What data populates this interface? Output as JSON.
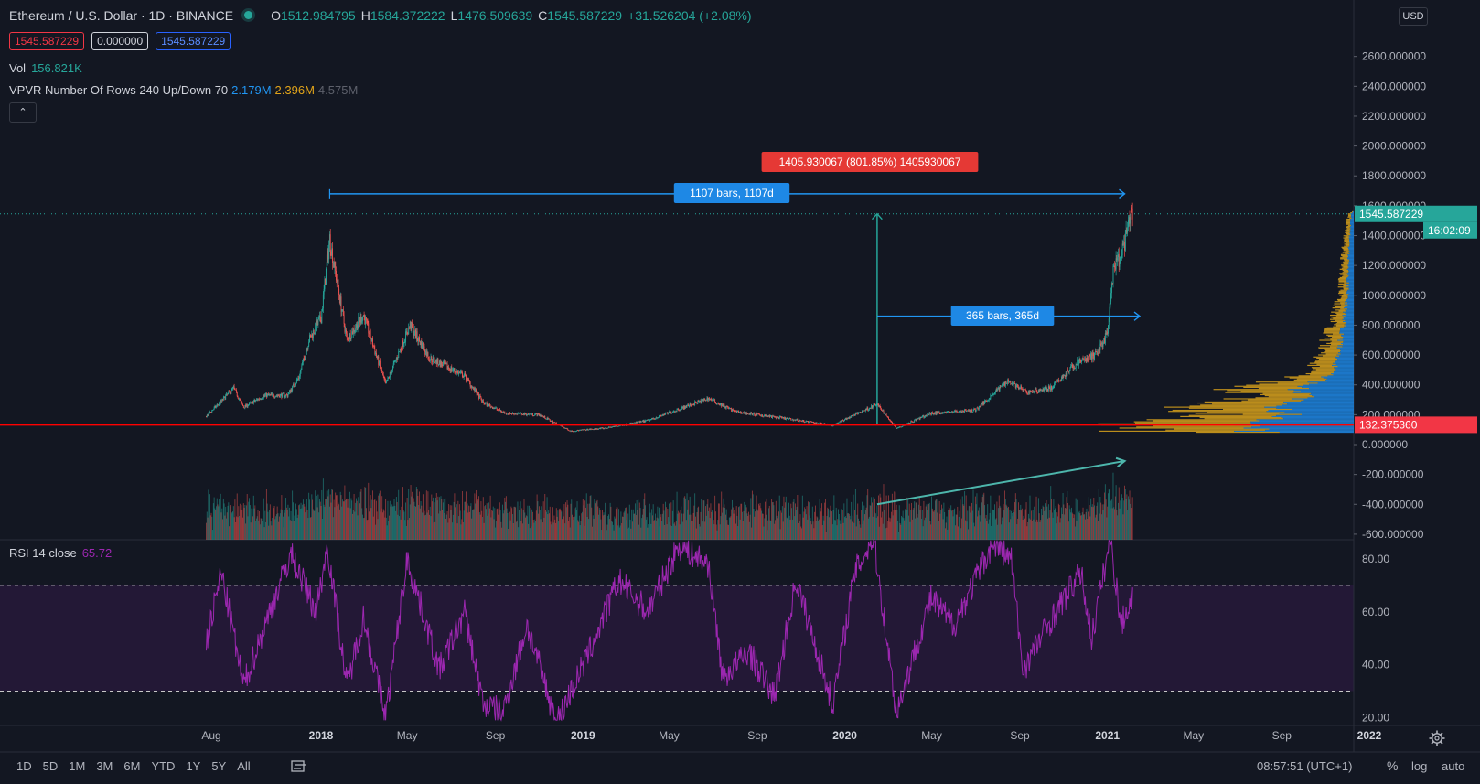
{
  "header": {
    "symbol": "Ethereum / U.S. Dollar · 1D · BINANCE",
    "o_label": "O",
    "o": "1512.984795",
    "h_label": "H",
    "h": "1584.372222",
    "l_label": "L",
    "l": "1476.509639",
    "c_label": "C",
    "c": "1545.587229",
    "change": "+31.526204 (+2.08%)"
  },
  "price_boxes": {
    "sell": "1545.587229",
    "spread": "0.000000",
    "buy": "1545.587229"
  },
  "volume_legend": {
    "label": "Vol",
    "value": "156.821K"
  },
  "vpvr_legend": {
    "label": "VPVR Number Of Rows 240 Up/Down 70",
    "up": "2.179M",
    "down": "2.396M",
    "total": "4.575M"
  },
  "rsi_legend": {
    "label": "RSI 14 close",
    "value": "65.72"
  },
  "currency": "USD",
  "colors": {
    "up": "#26a69a",
    "down": "#ef5350",
    "rsi": "#9c27b0",
    "support": "#ff0000",
    "measure": "#2196f3",
    "vpvr_up": "#1e88e5",
    "vpvr_down": "#d9a21b",
    "background": "#131722"
  },
  "icons": {
    "collapse": "chevron-up-icon",
    "compare": "compare-icon",
    "settings": "gear-icon",
    "status": "live-dot-icon"
  },
  "chart_data": [
    {
      "type": "candlestick",
      "title": "Ethereum / U.S. Dollar · 1D · BINANCE",
      "price_axis_ticks": [
        2600,
        2400,
        2200,
        2000,
        1800,
        1600,
        1400,
        1200,
        1000,
        800,
        600,
        400,
        200,
        0,
        -200,
        -400,
        -600
      ],
      "price_axis_format": "6 decimals",
      "ylim": [
        -700,
        2660
      ],
      "time_axis_ticks": [
        "Aug",
        "2018",
        "May",
        "Sep",
        "2019",
        "May",
        "Sep",
        "2020",
        "May",
        "Sep",
        "2021",
        "May",
        "Sep",
        "2022"
      ],
      "approximate_closes": [
        {
          "date": "2017-07-25",
          "close": 190
        },
        {
          "date": "2017-08-15",
          "close": 290
        },
        {
          "date": "2017-09-01",
          "close": 380
        },
        {
          "date": "2017-09-15",
          "close": 250
        },
        {
          "date": "2017-10-15",
          "close": 330
        },
        {
          "date": "2017-11-15",
          "close": 330
        },
        {
          "date": "2017-12-01",
          "close": 450
        },
        {
          "date": "2017-12-15",
          "close": 700
        },
        {
          "date": "2018-01-01",
          "close": 850
        },
        {
          "date": "2018-01-13",
          "close": 1380
        },
        {
          "date": "2018-02-06",
          "close": 700
        },
        {
          "date": "2018-03-01",
          "close": 870
        },
        {
          "date": "2018-04-01",
          "close": 400
        },
        {
          "date": "2018-05-05",
          "close": 800
        },
        {
          "date": "2018-06-01",
          "close": 580
        },
        {
          "date": "2018-07-20",
          "close": 460
        },
        {
          "date": "2018-08-15",
          "close": 280
        },
        {
          "date": "2018-09-15",
          "close": 210
        },
        {
          "date": "2018-11-01",
          "close": 200
        },
        {
          "date": "2018-12-15",
          "close": 90
        },
        {
          "date": "2019-02-01",
          "close": 110
        },
        {
          "date": "2019-04-01",
          "close": 160
        },
        {
          "date": "2019-06-25",
          "close": 310
        },
        {
          "date": "2019-08-01",
          "close": 220
        },
        {
          "date": "2019-10-01",
          "close": 180
        },
        {
          "date": "2019-12-15",
          "close": 130
        },
        {
          "date": "2020-02-15",
          "close": 270
        },
        {
          "date": "2020-03-13",
          "close": 110
        },
        {
          "date": "2020-05-01",
          "close": 210
        },
        {
          "date": "2020-07-01",
          "close": 230
        },
        {
          "date": "2020-08-15",
          "close": 430
        },
        {
          "date": "2020-09-10",
          "close": 350
        },
        {
          "date": "2020-10-15",
          "close": 380
        },
        {
          "date": "2020-11-20",
          "close": 550
        },
        {
          "date": "2020-12-15",
          "close": 600
        },
        {
          "date": "2021-01-01",
          "close": 740
        },
        {
          "date": "2021-01-10",
          "close": 1200
        },
        {
          "date": "2021-01-20",
          "close": 1250
        },
        {
          "date": "2021-02-01",
          "close": 1500
        },
        {
          "date": "2021-02-05",
          "close": 1545.587229
        }
      ],
      "last_price": {
        "value": 1545.587229,
        "label": "1545.587229",
        "countdown": "16:02:09"
      },
      "support_line": {
        "value": 132.37536,
        "label": "132.375360"
      },
      "annotations": [
        {
          "kind": "date_range",
          "label": "1107 bars, 1107d",
          "from": "2018-01-13",
          "to": "2021-01-25",
          "price": 1680
        },
        {
          "kind": "price_range",
          "label": "1405.930067 (801.85%) 1405930067",
          "from_price": 140,
          "to_price": 1546,
          "date": "2020-02-15"
        },
        {
          "kind": "date_range",
          "label": "365 bars, 365d",
          "from": "2020-02-15",
          "to": "2021-02-15",
          "price": 860
        },
        {
          "kind": "trend_arrow",
          "from": {
            "date": "2020-02-15",
            "price": -400
          },
          "to": {
            "date": "2021-01-25",
            "price": -110
          }
        }
      ]
    },
    {
      "type": "bar",
      "title": "Vol",
      "series": [
        {
          "name": "Vol",
          "last": "156.821K"
        }
      ],
      "note": "daily volume bars colored by candle direction"
    },
    {
      "type": "histogram",
      "title": "VPVR Number Of Rows 240 Up/Down 70",
      "up": "2.179M",
      "down": "2.396M",
      "total": "4.575M",
      "approximate_profile": [
        {
          "price": 110,
          "level": 0.92
        },
        {
          "price": 135,
          "level": 1.0
        },
        {
          "price": 160,
          "level": 0.8
        },
        {
          "price": 200,
          "level": 0.62
        },
        {
          "price": 240,
          "level": 0.72
        },
        {
          "price": 280,
          "level": 0.55
        },
        {
          "price": 330,
          "level": 0.42
        },
        {
          "price": 380,
          "level": 0.55
        },
        {
          "price": 430,
          "level": 0.28
        },
        {
          "price": 500,
          "level": 0.18
        },
        {
          "price": 600,
          "level": 0.14
        },
        {
          "price": 700,
          "level": 0.12
        },
        {
          "price": 800,
          "level": 0.1
        },
        {
          "price": 900,
          "level": 0.08
        },
        {
          "price": 1000,
          "level": 0.06
        },
        {
          "price": 1200,
          "level": 0.05
        },
        {
          "price": 1400,
          "level": 0.04
        },
        {
          "price": 1550,
          "level": 0.02
        }
      ]
    },
    {
      "type": "line",
      "title": "RSI 14 close",
      "series": [
        {
          "name": "RSI 14 close",
          "last": "65.72"
        }
      ],
      "y_axis_ticks": [
        "80.00",
        "60.00",
        "40.00",
        "20.00"
      ],
      "ylim": [
        18,
        88
      ],
      "bands": {
        "upper": 70,
        "lower": 30
      },
      "approximate_values": [
        {
          "date": "2017-07-25",
          "rsi": 48
        },
        {
          "date": "2017-08-15",
          "rsi": 75
        },
        {
          "date": "2017-09-15",
          "rsi": 32
        },
        {
          "date": "2017-10-15",
          "rsi": 55
        },
        {
          "date": "2017-11-20",
          "rsi": 82
        },
        {
          "date": "2017-12-25",
          "rsi": 60
        },
        {
          "date": "2018-01-10",
          "rsi": 85
        },
        {
          "date": "2018-02-06",
          "rsi": 32
        },
        {
          "date": "2018-03-01",
          "rsi": 58
        },
        {
          "date": "2018-04-01",
          "rsi": 20
        },
        {
          "date": "2018-05-01",
          "rsi": 80
        },
        {
          "date": "2018-06-15",
          "rsi": 38
        },
        {
          "date": "2018-07-20",
          "rsi": 60
        },
        {
          "date": "2018-08-15",
          "rsi": 25
        },
        {
          "date": "2018-09-12",
          "rsi": 22
        },
        {
          "date": "2018-10-15",
          "rsi": 55
        },
        {
          "date": "2018-11-25",
          "rsi": 18
        },
        {
          "date": "2019-01-10",
          "rsi": 45
        },
        {
          "date": "2019-02-20",
          "rsi": 72
        },
        {
          "date": "2019-04-01",
          "rsi": 60
        },
        {
          "date": "2019-05-15",
          "rsi": 85
        },
        {
          "date": "2019-06-25",
          "rsi": 78
        },
        {
          "date": "2019-07-15",
          "rsi": 35
        },
        {
          "date": "2019-08-20",
          "rsi": 45
        },
        {
          "date": "2019-09-25",
          "rsi": 28
        },
        {
          "date": "2019-10-25",
          "rsi": 72
        },
        {
          "date": "2019-12-15",
          "rsi": 25
        },
        {
          "date": "2020-01-15",
          "rsi": 75
        },
        {
          "date": "2020-02-10",
          "rsi": 88
        },
        {
          "date": "2020-03-13",
          "rsi": 22
        },
        {
          "date": "2020-04-30",
          "rsi": 65
        },
        {
          "date": "2020-06-01",
          "rsi": 55
        },
        {
          "date": "2020-07-25",
          "rsi": 86
        },
        {
          "date": "2020-08-20",
          "rsi": 80
        },
        {
          "date": "2020-09-05",
          "rsi": 38
        },
        {
          "date": "2020-10-10",
          "rsi": 55
        },
        {
          "date": "2020-11-25",
          "rsi": 75
        },
        {
          "date": "2020-12-10",
          "rsi": 50
        },
        {
          "date": "2021-01-05",
          "rsi": 88
        },
        {
          "date": "2021-01-20",
          "rsi": 55
        },
        {
          "date": "2021-02-05",
          "rsi": 65.72
        }
      ]
    }
  ],
  "bottombar": {
    "ranges": [
      "1D",
      "5D",
      "1M",
      "3M",
      "6M",
      "YTD",
      "1Y",
      "5Y",
      "All"
    ],
    "clock": "08:57:51 (UTC+1)",
    "percent": "%",
    "log": "log",
    "auto": "auto"
  }
}
